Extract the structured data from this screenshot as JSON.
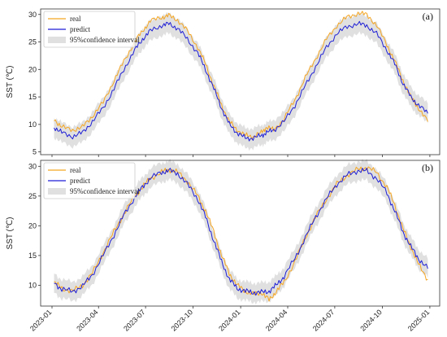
{
  "chart_data": {
    "type": "line",
    "shared_x": {
      "tick_labels": [
        "2023-01",
        "2023-04",
        "2023-07",
        "2023-10",
        "2024-01",
        "2024-04",
        "2024-07",
        "2024-10",
        "2025-01"
      ],
      "ticks": [
        "2023-01-01",
        "2023-04-01",
        "2023-07-01",
        "2023-10-01",
        "2024-01-01",
        "2024-04-01",
        "2024-07-01",
        "2024-10-01",
        "2025-01-01"
      ],
      "xlim": [
        "2022-12-10",
        "2025-01-20"
      ]
    },
    "panels": [
      {
        "panel_label": "(a)",
        "ylabel": "SST (℃)",
        "ylim": [
          4.5,
          31
        ],
        "yticks": [
          5,
          10,
          15,
          20,
          25,
          30
        ],
        "legend": [
          "real",
          "predict",
          "95%confidence interval"
        ],
        "legend_position": "top-left",
        "series": [
          {
            "name": "real",
            "color": "#f5a623",
            "points": [
              [
                "2023-01-05",
                11.0
              ],
              [
                "2023-01-20",
                9.5
              ],
              [
                "2023-02-10",
                9.0
              ],
              [
                "2023-03-01",
                9.5
              ],
              [
                "2023-03-20",
                11.5
              ],
              [
                "2023-04-10",
                14.0
              ],
              [
                "2023-05-01",
                18.0
              ],
              [
                "2023-05-20",
                21.5
              ],
              [
                "2023-06-10",
                25.0
              ],
              [
                "2023-06-25",
                27.0
              ],
              [
                "2023-07-10",
                28.8
              ],
              [
                "2023-08-01",
                29.5
              ],
              [
                "2023-08-15",
                29.8
              ],
              [
                "2023-09-01",
                29.0
              ],
              [
                "2023-09-20",
                27.0
              ],
              [
                "2023-10-10",
                24.0
              ],
              [
                "2023-10-25",
                21.0
              ],
              [
                "2023-11-10",
                17.0
              ],
              [
                "2023-11-25",
                13.5
              ],
              [
                "2023-12-10",
                10.5
              ],
              [
                "2023-12-25",
                9.0
              ],
              [
                "2024-01-10",
                8.0
              ],
              [
                "2024-01-25",
                7.8
              ],
              [
                "2024-02-10",
                8.5
              ],
              [
                "2024-02-20",
                9.5
              ],
              [
                "2024-03-05",
                9.0
              ],
              [
                "2024-03-25",
                11.0
              ],
              [
                "2024-04-15",
                14.5
              ],
              [
                "2024-05-05",
                18.5
              ],
              [
                "2024-05-25",
                22.0
              ],
              [
                "2024-06-15",
                25.5
              ],
              [
                "2024-07-05",
                28.0
              ],
              [
                "2024-07-25",
                29.5
              ],
              [
                "2024-08-15",
                30.2
              ],
              [
                "2024-09-01",
                30.0
              ],
              [
                "2024-09-20",
                28.0
              ],
              [
                "2024-10-10",
                24.5
              ],
              [
                "2024-10-25",
                21.5
              ],
              [
                "2024-11-10",
                18.0
              ],
              [
                "2024-11-25",
                15.0
              ],
              [
                "2024-12-10",
                13.0
              ],
              [
                "2024-12-28",
                10.5
              ]
            ]
          },
          {
            "name": "predict",
            "color": "#1f1fd6",
            "points": [
              [
                "2023-01-05",
                9.5
              ],
              [
                "2023-01-20",
                8.5
              ],
              [
                "2023-02-10",
                7.8
              ],
              [
                "2023-03-01",
                8.5
              ],
              [
                "2023-03-20",
                10.5
              ],
              [
                "2023-04-10",
                13.0
              ],
              [
                "2023-05-01",
                16.5
              ],
              [
                "2023-05-20",
                20.0
              ],
              [
                "2023-06-10",
                23.5
              ],
              [
                "2023-06-25",
                25.5
              ],
              [
                "2023-07-10",
                27.0
              ],
              [
                "2023-08-01",
                28.0
              ],
              [
                "2023-08-15",
                28.3
              ],
              [
                "2023-09-01",
                27.5
              ],
              [
                "2023-09-20",
                25.5
              ],
              [
                "2023-10-10",
                23.0
              ],
              [
                "2023-10-25",
                20.0
              ],
              [
                "2023-11-10",
                16.5
              ],
              [
                "2023-11-25",
                13.0
              ],
              [
                "2023-12-10",
                10.0
              ],
              [
                "2023-12-25",
                8.5
              ],
              [
                "2024-01-10",
                7.5
              ],
              [
                "2024-01-25",
                7.5
              ],
              [
                "2024-02-10",
                8.0
              ],
              [
                "2024-02-20",
                8.5
              ],
              [
                "2024-03-05",
                9.0
              ],
              [
                "2024-03-25",
                10.5
              ],
              [
                "2024-04-15",
                13.5
              ],
              [
                "2024-05-05",
                17.0
              ],
              [
                "2024-05-25",
                20.5
              ],
              [
                "2024-06-15",
                24.0
              ],
              [
                "2024-07-05",
                26.5
              ],
              [
                "2024-07-25",
                27.8
              ],
              [
                "2024-08-15",
                28.3
              ],
              [
                "2024-09-01",
                28.0
              ],
              [
                "2024-09-20",
                26.5
              ],
              [
                "2024-10-10",
                23.5
              ],
              [
                "2024-10-25",
                21.0
              ],
              [
                "2024-11-10",
                17.5
              ],
              [
                "2024-11-25",
                15.0
              ],
              [
                "2024-12-10",
                13.5
              ],
              [
                "2024-12-28",
                12.0
              ]
            ]
          }
        ],
        "confidence_interval": {
          "name": "95%confidence interval",
          "half_width": 1.8,
          "color": "#e0e0e0"
        }
      },
      {
        "panel_label": "(b)",
        "ylabel": "SST (℃)",
        "ylim": [
          6.5,
          31
        ],
        "yticks": [
          10,
          15,
          20,
          25,
          30
        ],
        "legend": [
          "real",
          "predict",
          "95%confidence interval"
        ],
        "legend_position": "top-left",
        "series": [
          {
            "name": "real",
            "color": "#f5a623",
            "points": [
              [
                "2023-01-05",
                10.5
              ],
              [
                "2023-01-20",
                9.5
              ],
              [
                "2023-02-10",
                9.0
              ],
              [
                "2023-03-01",
                10.0
              ],
              [
                "2023-03-20",
                12.0
              ],
              [
                "2023-04-10",
                15.5
              ],
              [
                "2023-05-01",
                19.0
              ],
              [
                "2023-05-20",
                22.0
              ],
              [
                "2023-06-10",
                25.0
              ],
              [
                "2023-06-25",
                26.5
              ],
              [
                "2023-07-10",
                28.0
              ],
              [
                "2023-08-01",
                29.0
              ],
              [
                "2023-08-15",
                29.5
              ],
              [
                "2023-09-01",
                29.0
              ],
              [
                "2023-09-20",
                27.5
              ],
              [
                "2023-10-10",
                25.0
              ],
              [
                "2023-10-25",
                22.5
              ],
              [
                "2023-11-10",
                19.0
              ],
              [
                "2023-11-25",
                15.0
              ],
              [
                "2023-12-10",
                12.0
              ],
              [
                "2023-12-25",
                10.0
              ],
              [
                "2024-01-10",
                9.0
              ],
              [
                "2024-01-25",
                8.5
              ],
              [
                "2024-02-10",
                8.8
              ],
              [
                "2024-02-25",
                7.5
              ],
              [
                "2024-03-10",
                9.0
              ],
              [
                "2024-03-25",
                10.5
              ],
              [
                "2024-04-15",
                14.0
              ],
              [
                "2024-05-05",
                18.0
              ],
              [
                "2024-05-25",
                21.5
              ],
              [
                "2024-06-15",
                24.5
              ],
              [
                "2024-07-05",
                27.0
              ],
              [
                "2024-07-25",
                28.5
              ],
              [
                "2024-08-15",
                29.5
              ],
              [
                "2024-09-01",
                29.8
              ],
              [
                "2024-09-20",
                29.0
              ],
              [
                "2024-10-10",
                26.5
              ],
              [
                "2024-10-25",
                23.5
              ],
              [
                "2024-11-10",
                19.5
              ],
              [
                "2024-11-25",
                16.5
              ],
              [
                "2024-12-10",
                13.5
              ],
              [
                "2024-12-28",
                11.0
              ]
            ]
          },
          {
            "name": "predict",
            "color": "#1f1fd6",
            "points": [
              [
                "2023-01-05",
                10.5
              ],
              [
                "2023-01-20",
                9.3
              ],
              [
                "2023-02-10",
                9.0
              ],
              [
                "2023-03-01",
                9.8
              ],
              [
                "2023-03-20",
                11.8
              ],
              [
                "2023-04-10",
                15.0
              ],
              [
                "2023-05-01",
                18.5
              ],
              [
                "2023-05-20",
                21.8
              ],
              [
                "2023-06-10",
                24.8
              ],
              [
                "2023-06-25",
                26.5
              ],
              [
                "2023-07-10",
                28.0
              ],
              [
                "2023-08-01",
                29.0
              ],
              [
                "2023-08-15",
                29.3
              ],
              [
                "2023-09-01",
                28.8
              ],
              [
                "2023-09-20",
                27.0
              ],
              [
                "2023-10-10",
                24.5
              ],
              [
                "2023-10-25",
                21.5
              ],
              [
                "2023-11-10",
                17.5
              ],
              [
                "2023-11-25",
                14.0
              ],
              [
                "2023-12-10",
                11.0
              ],
              [
                "2023-12-25",
                9.5
              ],
              [
                "2024-01-10",
                9.0
              ],
              [
                "2024-01-25",
                8.8
              ],
              [
                "2024-02-10",
                8.8
              ],
              [
                "2024-02-25",
                9.0
              ],
              [
                "2024-03-10",
                10.0
              ],
              [
                "2024-03-25",
                11.5
              ],
              [
                "2024-04-15",
                14.5
              ],
              [
                "2024-05-05",
                18.0
              ],
              [
                "2024-05-25",
                21.5
              ],
              [
                "2024-06-15",
                24.5
              ],
              [
                "2024-07-05",
                27.0
              ],
              [
                "2024-07-25",
                28.5
              ],
              [
                "2024-08-15",
                29.3
              ],
              [
                "2024-09-01",
                29.2
              ],
              [
                "2024-09-20",
                28.0
              ],
              [
                "2024-10-10",
                25.5
              ],
              [
                "2024-10-25",
                22.5
              ],
              [
                "2024-11-10",
                19.0
              ],
              [
                "2024-11-25",
                16.5
              ],
              [
                "2024-12-10",
                14.5
              ],
              [
                "2024-12-28",
                12.8
              ]
            ]
          }
        ],
        "confidence_interval": {
          "name": "95%confidence interval",
          "half_width": 1.6,
          "color": "#e0e0e0"
        }
      }
    ]
  }
}
